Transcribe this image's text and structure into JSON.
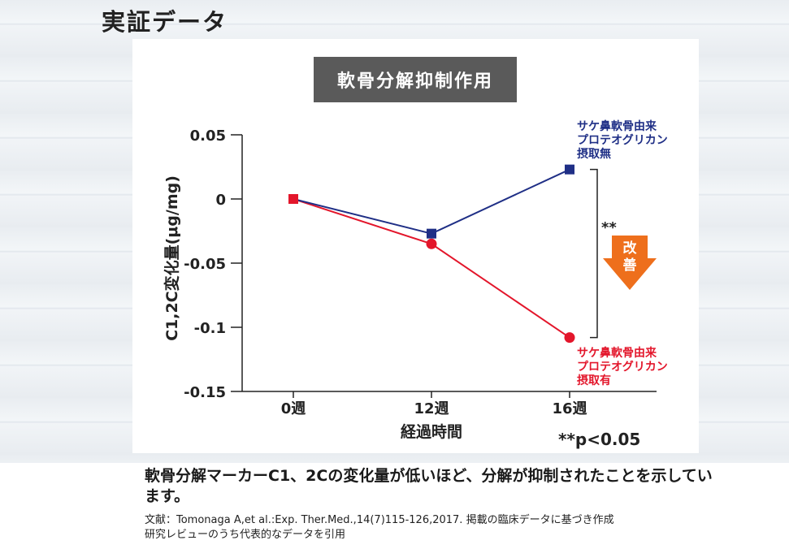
{
  "page_title": "実証データ",
  "caption": "軟骨分解マーカーC1、2Cの変化量が低いほど、分解が抑制されたことを示しています。",
  "reference_line1": "文献：Tomonaga A,et al.:Exp. Ther.Med.,14(7)115-126,2017. 掲載の臨床データに基づき作成",
  "reference_line2": "研究レビューのうち代表的なデータを引用",
  "colors": {
    "blue": "#1f2f86",
    "red": "#e3162b",
    "orange": "#ee6f1c"
  },
  "chart_data": {
    "type": "line",
    "title": "軟骨分解抑制作用",
    "xlabel": "経過時間",
    "ylabel": "C1,2C変化量(μg/mg)",
    "categories": [
      "0週",
      "12週",
      "16週"
    ],
    "yticks": [
      "0.05",
      "0",
      "-0.05",
      "-0.1",
      "-0.15"
    ],
    "ylim": [
      -0.15,
      0.05
    ],
    "series": [
      {
        "name": "サケ鼻軟骨由来\nプロテオグリカン\n摂取無",
        "marker": "square",
        "color": "#1f2f86",
        "values": [
          0,
          -0.027,
          0.023
        ]
      },
      {
        "name": "サケ鼻軟骨由来\nプロテオグリカン\n摂取有",
        "marker": "circle",
        "color": "#e3162b",
        "values": [
          0,
          -0.035,
          -0.108
        ]
      }
    ],
    "annotations": {
      "significance": "**",
      "improvement": "改善",
      "pvalue": "**p<0.05"
    }
  }
}
